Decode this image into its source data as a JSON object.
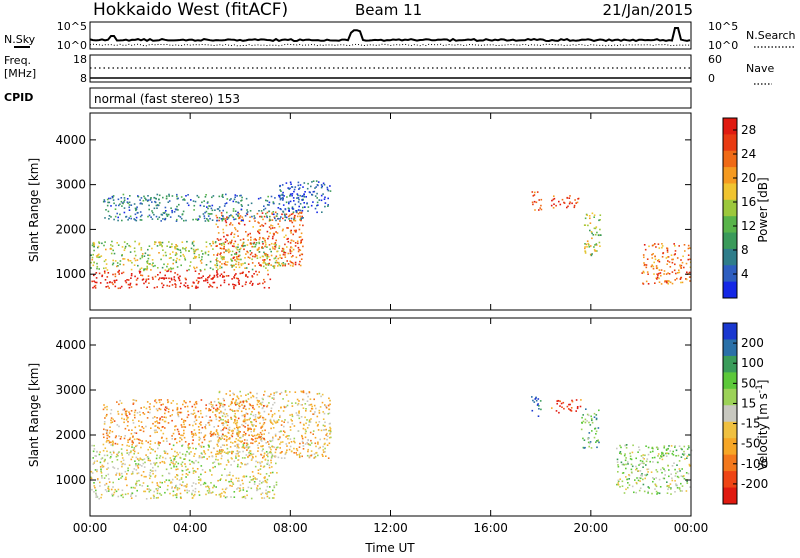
{
  "header": {
    "title": "Hokkaido West (fitACF)",
    "beam": "Beam 11",
    "date": "21/Jan/2015"
  },
  "noise_panel": {
    "left_label": "N.Sky",
    "right_label": "N.Search",
    "left_ticks": [
      "10^5",
      "10^0"
    ],
    "right_ticks": [
      "10^5",
      "10^0"
    ]
  },
  "freq_panel": {
    "left_label_1": "Freq.",
    "left_label_2": "[MHz]",
    "left_ticks": [
      "18",
      "8"
    ],
    "right_label": "Nave",
    "right_ticks": [
      "60",
      "0"
    ],
    "cpid_label": "CPID",
    "cpid_text": "normal (fast stereo) 153"
  },
  "chart_data": [
    {
      "type": "heatmap",
      "title": "",
      "xlabel": "",
      "ylabel": "Slant Range [km]",
      "x_ticks": [
        "00:00",
        "04:00",
        "08:00",
        "12:00",
        "16:00",
        "20:00",
        "00:00"
      ],
      "xlim_hours": [
        0,
        24
      ],
      "y_ticks": [
        1000,
        2000,
        3000,
        4000
      ],
      "ylim": [
        200,
        4600
      ],
      "colorbar": {
        "label": "Power [dB]",
        "ticks": [
          4,
          8,
          12,
          16,
          20,
          24,
          28
        ],
        "range": [
          0,
          30
        ],
        "colors": [
          "#1528e6",
          "#2e5ec0",
          "#2f7d8a",
          "#3a9a5a",
          "#58b44a",
          "#9cc83c",
          "#f0c430",
          "#f59a20",
          "#f06a15",
          "#e83a12",
          "#e01a10"
        ]
      },
      "regions": [
        {
          "t": [
            0.0,
            7.2
          ],
          "r": [
            700,
            1100
          ],
          "level": 10
        },
        {
          "t": [
            0.0,
            7.8
          ],
          "r": [
            1100,
            1750
          ],
          "level": 5
        },
        {
          "t": [
            5.0,
            8.5
          ],
          "r": [
            1200,
            2400
          ],
          "level": 8
        },
        {
          "t": [
            0.5,
            8.5
          ],
          "r": [
            2200,
            2800
          ],
          "level": 2
        },
        {
          "t": [
            7.5,
            9.6
          ],
          "r": [
            2400,
            3100
          ],
          "level": 1
        },
        {
          "t": [
            17.6,
            18.0
          ],
          "r": [
            2400,
            2900
          ],
          "level": 9
        },
        {
          "t": [
            18.4,
            19.6
          ],
          "r": [
            2500,
            2800
          ],
          "level": 9
        },
        {
          "t": [
            19.7,
            20.4
          ],
          "r": [
            1400,
            2400
          ],
          "level": 5
        },
        {
          "t": [
            22.0,
            24.0
          ],
          "r": [
            800,
            1700
          ],
          "level": 8
        }
      ]
    },
    {
      "type": "heatmap",
      "title": "",
      "xlabel": "Time UT",
      "ylabel": "Slant Range [km]",
      "x_ticks": [
        "00:00",
        "04:00",
        "08:00",
        "12:00",
        "16:00",
        "20:00",
        "00:00"
      ],
      "xlim_hours": [
        0,
        24
      ],
      "y_ticks": [
        1000,
        2000,
        3000,
        4000
      ],
      "ylim": [
        200,
        4600
      ],
      "colorbar": {
        "label": "Velocity [m s^-1]",
        "ticks": [
          "200",
          "100",
          "50",
          "15",
          "-15",
          "-50",
          "-100",
          "-200"
        ],
        "range": [
          -250,
          250
        ],
        "colors": [
          "#e01a10",
          "#ef4515",
          "#f3781c",
          "#f6a626",
          "#efc040",
          "#c8c8c0",
          "#9cd258",
          "#5cc83a",
          "#3a9c5a",
          "#2a70a8",
          "#1a38d0"
        ]
      },
      "regions": [
        {
          "t": [
            0.0,
            7.5
          ],
          "r": [
            600,
            1800
          ],
          "level": 5
        },
        {
          "t": [
            5.0,
            9.6
          ],
          "r": [
            1500,
            3000
          ],
          "level": 4
        },
        {
          "t": [
            0.5,
            7.0
          ],
          "r": [
            1800,
            2800
          ],
          "level": 3
        },
        {
          "t": [
            17.6,
            18.0
          ],
          "r": [
            2400,
            2900
          ],
          "level": 10
        },
        {
          "t": [
            18.4,
            19.6
          ],
          "r": [
            2500,
            2800
          ],
          "level": 1
        },
        {
          "t": [
            19.6,
            20.3
          ],
          "r": [
            1700,
            2600
          ],
          "level": 7
        },
        {
          "t": [
            21.0,
            24.0
          ],
          "r": [
            700,
            1800
          ],
          "level": 6
        }
      ]
    }
  ]
}
